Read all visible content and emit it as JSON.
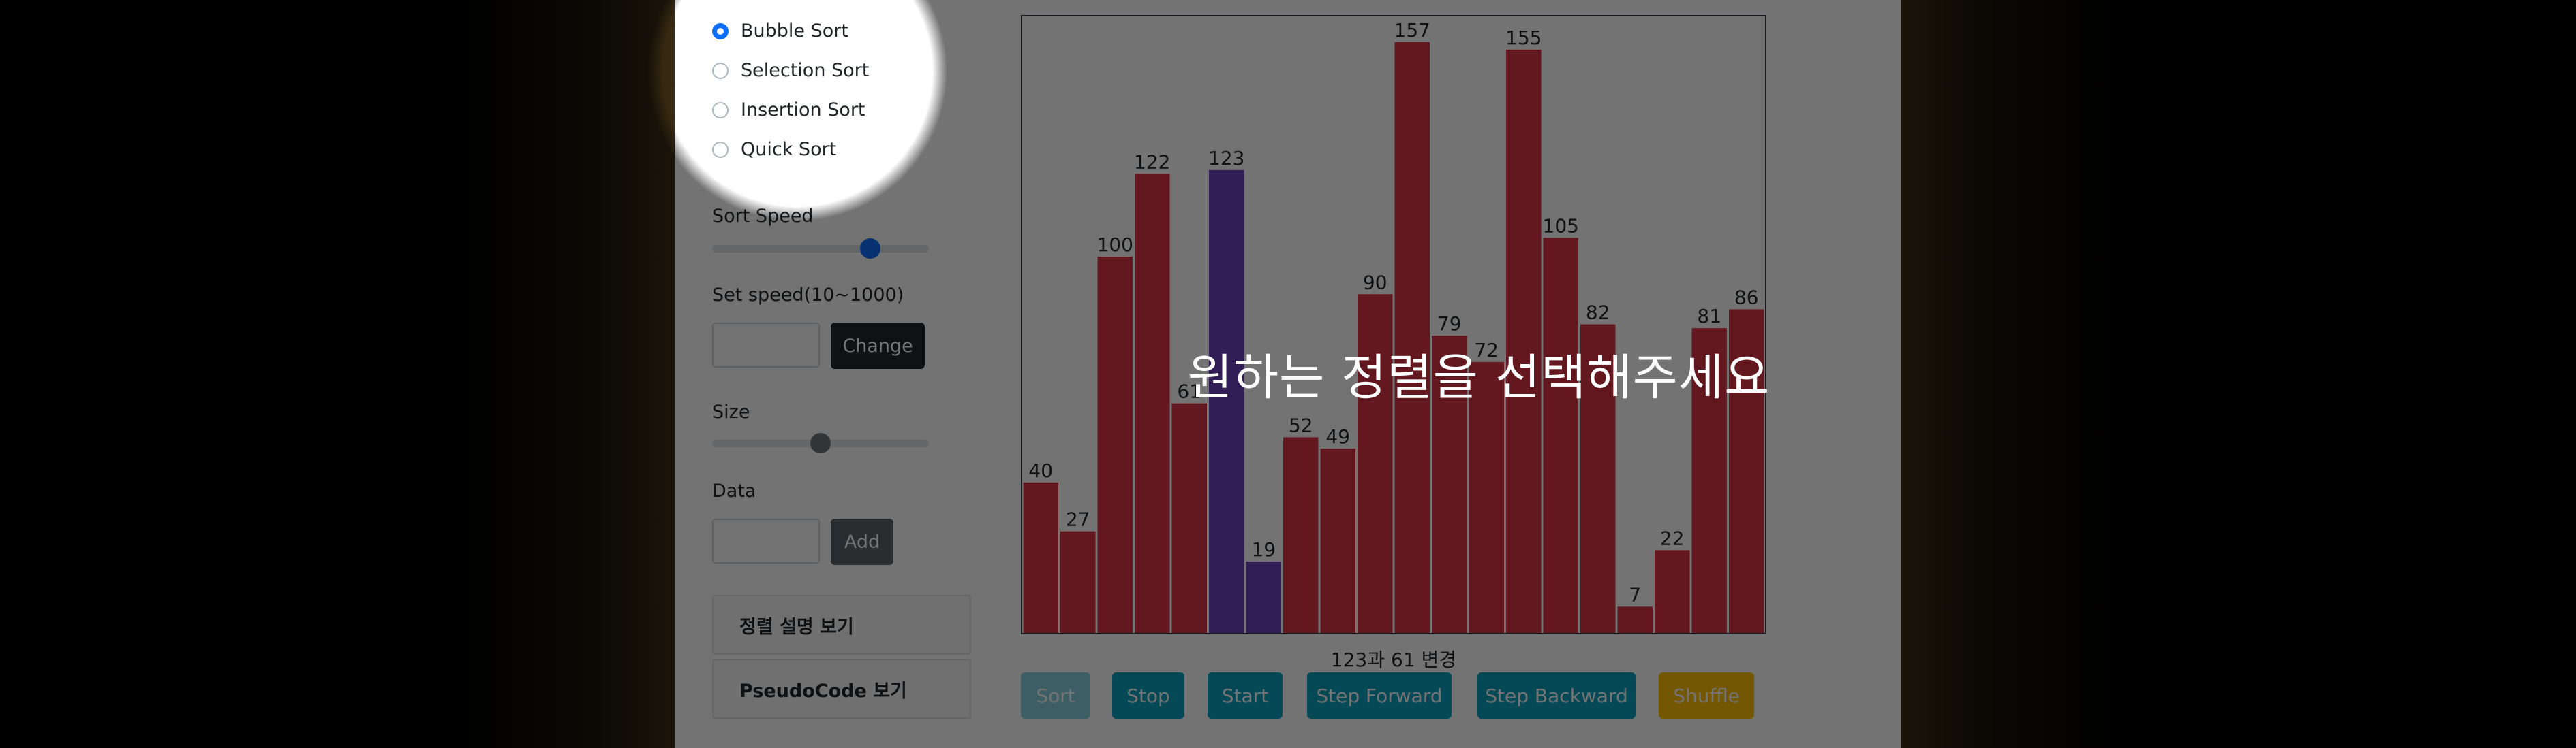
{
  "algorithms": [
    {
      "label": "Bubble Sort",
      "checked": true
    },
    {
      "label": "Selection Sort",
      "checked": false
    },
    {
      "label": "Insertion Sort",
      "checked": false
    },
    {
      "label": "Quick Sort",
      "checked": false
    }
  ],
  "speed": {
    "label": "Sort Speed",
    "value_fraction": 0.73
  },
  "set_speed": {
    "label": "Set speed(10~1000)",
    "value": "",
    "button": "Change"
  },
  "size": {
    "label": "Size",
    "value_fraction": 0.5
  },
  "data_input": {
    "label": "Data",
    "value": "",
    "button": "Add"
  },
  "panels": {
    "explanation": "정렬 설명 보기",
    "pseudocode": "PseudoCode 보기"
  },
  "chart_data": {
    "type": "bar",
    "values": [
      40,
      27,
      100,
      122,
      61,
      123,
      19,
      52,
      49,
      90,
      157,
      79,
      72,
      155,
      105,
      82,
      7,
      22,
      81,
      86
    ],
    "highlight_indices": [
      5,
      6
    ],
    "ylim": [
      0,
      160
    ],
    "colors": {
      "bar": "#dc3545",
      "highlight": "#6f42c1"
    }
  },
  "caption": "123과 61 변경",
  "actions": {
    "sort": "Sort",
    "stop": "Stop",
    "start": "Start",
    "step_forward": "Step Forward",
    "step_backward": "Step Backward",
    "shuffle": "Shuffle"
  },
  "overlay_message": "원하는 정렬을 선택해주세요"
}
